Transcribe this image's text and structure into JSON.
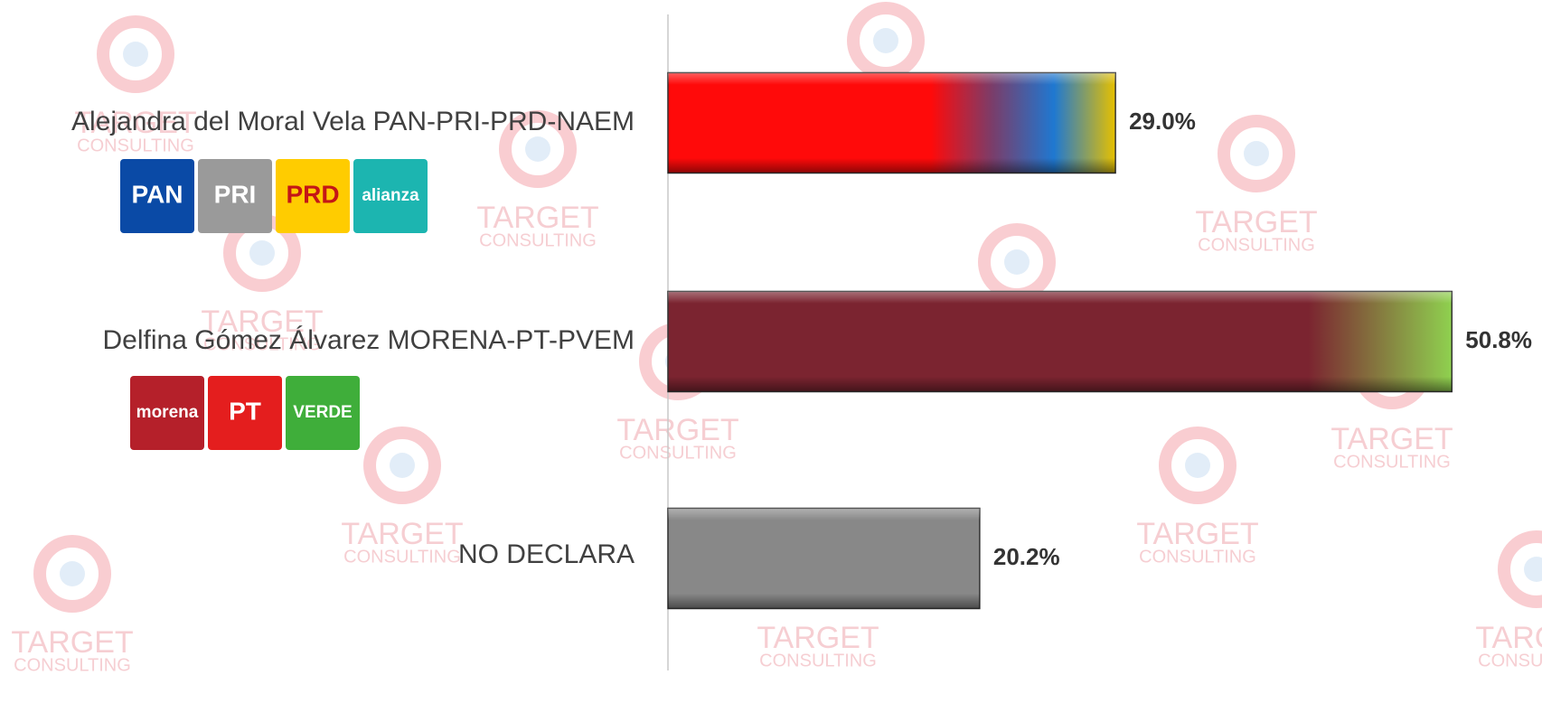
{
  "chart_data": {
    "type": "barh",
    "categories": [
      "Alejandra del Moral Vela PAN-PRI-PRD-NAEM",
      "Delfina Gómez Álvarez MORENA-PT-PVEM",
      "NO DECLARA"
    ],
    "values": [
      29.0,
      50.8,
      20.2
    ],
    "value_labels": [
      "29.0%",
      "50.8%",
      "20.2%"
    ],
    "colors": [
      [
        "#ff0a0a",
        "#ff0a0a",
        "#7a3d6a",
        "#1f78d1",
        "#e6c000"
      ],
      [
        "#7b2430",
        "#7b2430",
        "#7b2430",
        "#8fd14f"
      ],
      [
        "#888888"
      ]
    ],
    "xlim": [
      0,
      55
    ],
    "logos": [
      [
        {
          "text": "PAN",
          "color": "#0a4aa6"
        },
        {
          "text": "PRI",
          "color": "#ffffff"
        },
        {
          "text": "PRD",
          "color": "#ffcc00"
        },
        {
          "text": "alianza",
          "color": "#1cb5b0"
        }
      ],
      [
        {
          "text": "morena",
          "color": "#b5202a"
        },
        {
          "text": "PT",
          "color": "#e41e1e"
        },
        {
          "text": "VERDE",
          "color": "#3fae3a"
        }
      ]
    ],
    "watermark": [
      "TARGET",
      "CONSULTING"
    ]
  }
}
